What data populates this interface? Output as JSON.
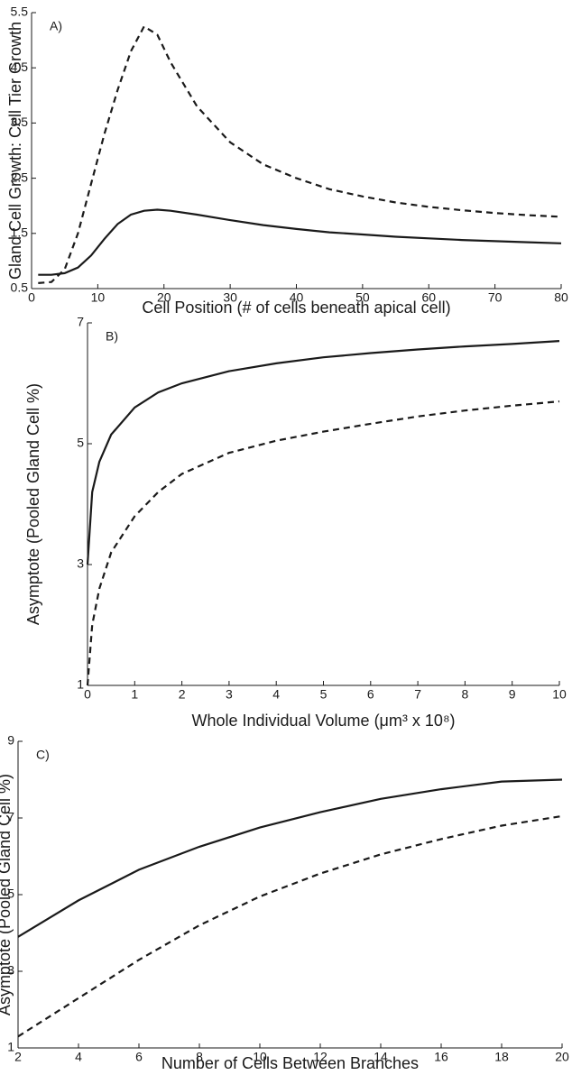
{
  "chart_data": [
    {
      "type": "line",
      "label": "A)",
      "x_label": "Cell Position (# of cells beneath apical cell)",
      "y_label": "Gland Cell Growth: Cell Tier Growth",
      "xlim": [
        0,
        80
      ],
      "ylim": [
        0.5,
        5.5
      ],
      "xticks": [
        0,
        10,
        20,
        30,
        40,
        50,
        60,
        70,
        80
      ],
      "yticks": [
        0.5,
        1.5,
        2.5,
        3.5,
        4.5,
        5.5
      ],
      "x": [
        1,
        3,
        5,
        7,
        9,
        11,
        13,
        15,
        17,
        19,
        21,
        25,
        30,
        35,
        40,
        45,
        50,
        55,
        60,
        65,
        70,
        75,
        80
      ],
      "series": [
        {
          "color": "#1a1a1a",
          "style": "solid",
          "values": [
            0.75,
            0.75,
            0.78,
            0.88,
            1.1,
            1.4,
            1.67,
            1.84,
            1.91,
            1.93,
            1.91,
            1.84,
            1.74,
            1.65,
            1.58,
            1.52,
            1.48,
            1.44,
            1.41,
            1.38,
            1.36,
            1.34,
            1.32
          ]
        },
        {
          "color": "#1a1a1a",
          "style": "dashed",
          "values": [
            0.6,
            0.62,
            0.85,
            1.5,
            2.4,
            3.3,
            4.1,
            4.8,
            5.25,
            5.1,
            4.6,
            3.8,
            3.15,
            2.75,
            2.5,
            2.3,
            2.17,
            2.06,
            1.98,
            1.92,
            1.87,
            1.83,
            1.8
          ]
        }
      ]
    },
    {
      "type": "line",
      "label": "B)",
      "x_label": "Whole Individual Volume (μm³ x 10⁸)",
      "y_label": "Asymptote (Pooled Gland Cell %)",
      "xlim": [
        0,
        10
      ],
      "ylim": [
        1,
        7
      ],
      "xticks": [
        0,
        1,
        2,
        3,
        4,
        5,
        6,
        7,
        8,
        9,
        10
      ],
      "yticks": [
        1,
        3,
        5,
        7
      ],
      "x": [
        0,
        0.1,
        0.25,
        0.5,
        1,
        1.5,
        2,
        3,
        4,
        5,
        6,
        7,
        8,
        9,
        10
      ],
      "series": [
        {
          "color": "#1a1a1a",
          "style": "solid",
          "values": [
            3.0,
            4.2,
            4.7,
            5.15,
            5.6,
            5.85,
            6.0,
            6.2,
            6.33,
            6.43,
            6.5,
            6.56,
            6.61,
            6.65,
            6.7
          ]
        },
        {
          "color": "#1a1a1a",
          "style": "dashed",
          "values": [
            1.0,
            2.0,
            2.6,
            3.2,
            3.8,
            4.2,
            4.5,
            4.85,
            5.05,
            5.2,
            5.33,
            5.45,
            5.55,
            5.63,
            5.7
          ]
        }
      ]
    },
    {
      "type": "line",
      "label": "C)",
      "x_label": "Number of Cells Between Branches",
      "y_label": "Asymptote (Pooled Gland Cell %)",
      "xlim": [
        2,
        20
      ],
      "ylim": [
        1,
        9
      ],
      "xticks": [
        2,
        4,
        6,
        8,
        10,
        12,
        14,
        16,
        18,
        20
      ],
      "yticks": [
        1,
        3,
        5,
        7,
        9
      ],
      "x": [
        2,
        4,
        6,
        8,
        10,
        12,
        14,
        16,
        18,
        20
      ],
      "series": [
        {
          "color": "#1a1a1a",
          "style": "solid",
          "values": [
            3.9,
            4.85,
            5.65,
            6.25,
            6.75,
            7.15,
            7.5,
            7.75,
            7.95,
            8.0
          ]
        },
        {
          "color": "#1a1a1a",
          "style": "dashed",
          "values": [
            1.3,
            2.3,
            3.3,
            4.2,
            4.95,
            5.55,
            6.05,
            6.45,
            6.8,
            7.05
          ]
        }
      ]
    }
  ]
}
